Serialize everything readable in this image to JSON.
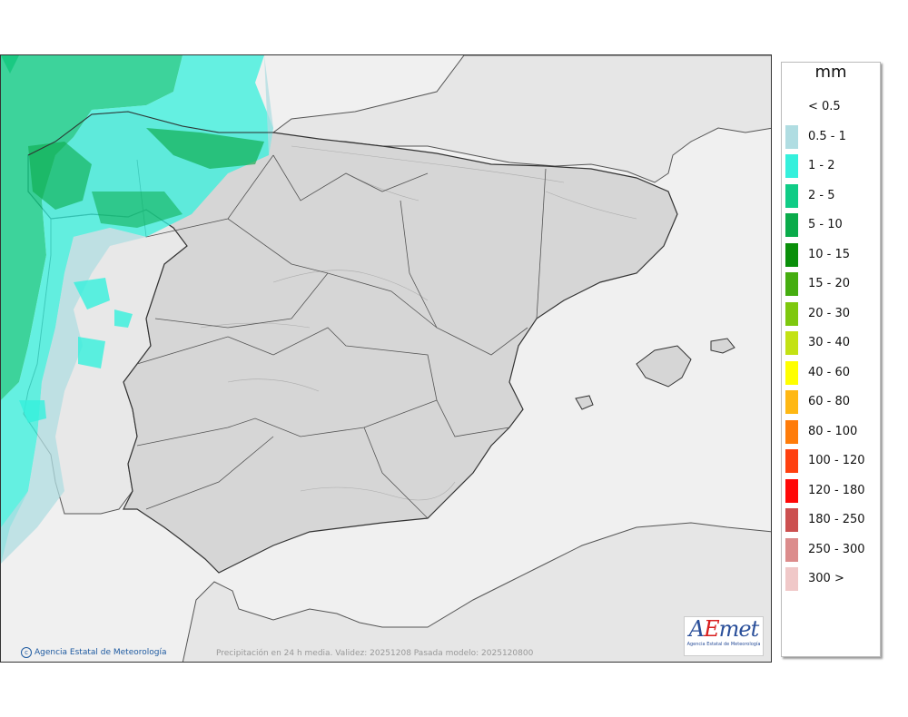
{
  "legend": {
    "unit": "mm",
    "entries": [
      {
        "label": "< 0.5",
        "color": "#ffffff"
      },
      {
        "label": "0.5 - 1",
        "color": "#b0dde2"
      },
      {
        "label": "1 - 2",
        "color": "#35f0dc"
      },
      {
        "label": "2 - 5",
        "color": "#10cc86"
      },
      {
        "label": "5 - 10",
        "color": "#0aab4a"
      },
      {
        "label": "10 - 15",
        "color": "#0a8f0a"
      },
      {
        "label": "15 - 20",
        "color": "#45ad10"
      },
      {
        "label": "20 - 30",
        "color": "#7ec80e"
      },
      {
        "label": "30 - 40",
        "color": "#c3e214"
      },
      {
        "label": "40 - 60",
        "color": "#ffff00"
      },
      {
        "label": "60 - 80",
        "color": "#ffb814"
      },
      {
        "label": "80 - 100",
        "color": "#ff7c0a"
      },
      {
        "label": "100 - 120",
        "color": "#ff4010"
      },
      {
        "label": "120 - 180",
        "color": "#ff0808"
      },
      {
        "label": "180 - 250",
        "color": "#cc5050"
      },
      {
        "label": "250 - 300",
        "color": "#dc8c8c"
      },
      {
        "label": "300 >",
        "color": "#f0c8c8"
      }
    ]
  },
  "footer": {
    "credit": "Agencia Estatal de Meteorología",
    "caption": "Precipitación en 24 h media. Validez: 20251208 Pasada modelo: 2025120800"
  },
  "logo": {
    "word_a": "A",
    "word_e": "E",
    "word_rest": "met",
    "subtitle": "Agencia Estatal de Meteorología"
  },
  "colors": {
    "sea": "#f0f0f0",
    "land": "#e8e8e8",
    "border": "#333333"
  }
}
